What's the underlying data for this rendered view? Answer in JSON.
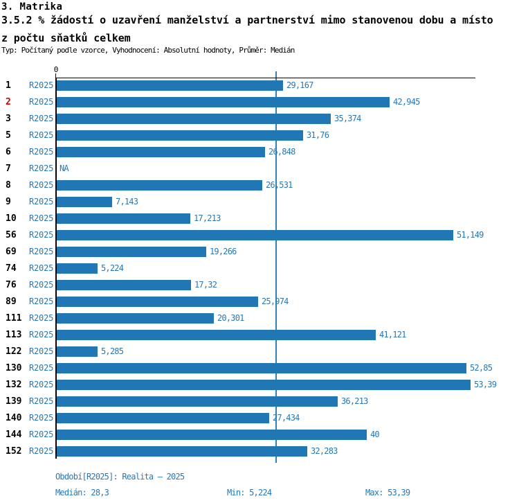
{
  "header": {
    "title": "3. Matrika",
    "subtitle_line1": "3.5.2 % žádostí o uzavření manželství a partnerství mimo stanovenou dobu a místo",
    "subtitle_line2": "z počtu sňatků celkem",
    "meta": "Typ: Počítaný podle vzorce, Vyhodnocení: Absolutní hodnoty, Průměr: Medián"
  },
  "chart_data": {
    "type": "bar",
    "orientation": "horizontal",
    "series_name": "R2025",
    "zero_tick_label": "0",
    "xlim": [
      0,
      54
    ],
    "median_value": 28.3,
    "grid": false,
    "legend_position": "none",
    "highlighted_category": "2",
    "colors": {
      "bar": "#2177b4",
      "label_text": "#2878b4",
      "highlight_category": "#cc0000",
      "axis": "#000000",
      "median_line": "#2e81ba"
    },
    "categories": [
      "1",
      "2",
      "3",
      "5",
      "6",
      "7",
      "8",
      "9",
      "10",
      "56",
      "69",
      "74",
      "76",
      "89",
      "111",
      "113",
      "122",
      "130",
      "132",
      "139",
      "140",
      "144",
      "152"
    ],
    "values": [
      29.167,
      42.945,
      35.374,
      31.76,
      26.848,
      null,
      26.531,
      7.143,
      17.213,
      51.149,
      19.266,
      5.224,
      17.32,
      25.974,
      20.301,
      41.121,
      5.285,
      52.85,
      53.39,
      36.213,
      27.434,
      40,
      32.283
    ],
    "rows": [
      {
        "category": "1",
        "series": "R2025",
        "value": 29.167,
        "label": "29,167",
        "highlight": false
      },
      {
        "category": "2",
        "series": "R2025",
        "value": 42.945,
        "label": "42,945",
        "highlight": true
      },
      {
        "category": "3",
        "series": "R2025",
        "value": 35.374,
        "label": "35,374",
        "highlight": false
      },
      {
        "category": "5",
        "series": "R2025",
        "value": 31.76,
        "label": "31,76",
        "highlight": false
      },
      {
        "category": "6",
        "series": "R2025",
        "value": 26.848,
        "label": "26,848",
        "highlight": false
      },
      {
        "category": "7",
        "series": "R2025",
        "value": null,
        "label": "NA",
        "highlight": false
      },
      {
        "category": "8",
        "series": "R2025",
        "value": 26.531,
        "label": "26,531",
        "highlight": false
      },
      {
        "category": "9",
        "series": "R2025",
        "value": 7.143,
        "label": "7,143",
        "highlight": false
      },
      {
        "category": "10",
        "series": "R2025",
        "value": 17.213,
        "label": "17,213",
        "highlight": false
      },
      {
        "category": "56",
        "series": "R2025",
        "value": 51.149,
        "label": "51,149",
        "highlight": false
      },
      {
        "category": "69",
        "series": "R2025",
        "value": 19.266,
        "label": "19,266",
        "highlight": false
      },
      {
        "category": "74",
        "series": "R2025",
        "value": 5.224,
        "label": "5,224",
        "highlight": false
      },
      {
        "category": "76",
        "series": "R2025",
        "value": 17.32,
        "label": "17,32",
        "highlight": false
      },
      {
        "category": "89",
        "series": "R2025",
        "value": 25.974,
        "label": "25,974",
        "highlight": false
      },
      {
        "category": "111",
        "series": "R2025",
        "value": 20.301,
        "label": "20,301",
        "highlight": false
      },
      {
        "category": "113",
        "series": "R2025",
        "value": 41.121,
        "label": "41,121",
        "highlight": false
      },
      {
        "category": "122",
        "series": "R2025",
        "value": 5.285,
        "label": "5,285",
        "highlight": false
      },
      {
        "category": "130",
        "series": "R2025",
        "value": 52.85,
        "label": "52,85",
        "highlight": false
      },
      {
        "category": "132",
        "series": "R2025",
        "value": 53.39,
        "label": "53,39",
        "highlight": false
      },
      {
        "category": "139",
        "series": "R2025",
        "value": 36.213,
        "label": "36,213",
        "highlight": false
      },
      {
        "category": "140",
        "series": "R2025",
        "value": 27.434,
        "label": "27,434",
        "highlight": false
      },
      {
        "category": "144",
        "series": "R2025",
        "value": 40,
        "label": "40",
        "highlight": false
      },
      {
        "category": "152",
        "series": "R2025",
        "value": 32.283,
        "label": "32,283",
        "highlight": false
      }
    ]
  },
  "footer": {
    "period": "Období[R2025]: Realita – 2025",
    "median": "Medián: 28,3",
    "min": "Min: 5,224",
    "max": "Max: 53,39"
  }
}
